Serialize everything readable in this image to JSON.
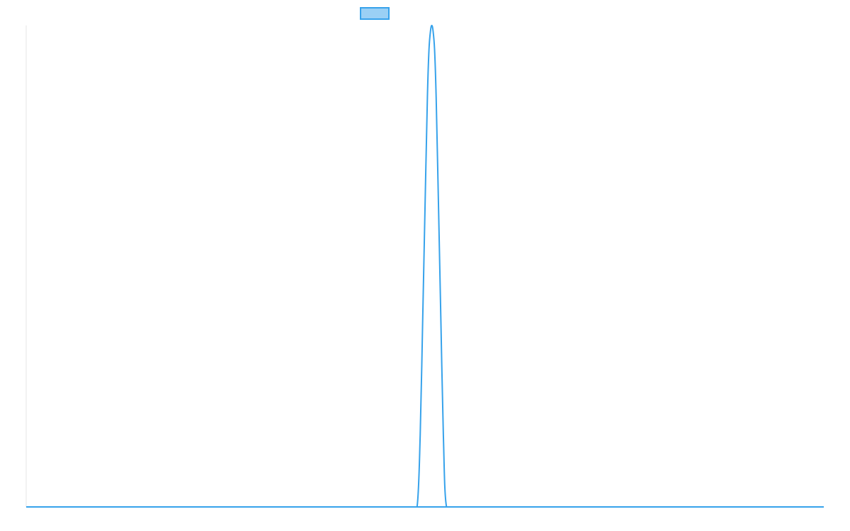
{
  "colors": {
    "line": "#36a2eb",
    "legend_fill": "#9ad0f5",
    "grid": "#e5e5e5"
  },
  "chart_data": {
    "type": "line",
    "title": "",
    "xlabel": "",
    "ylabel": "",
    "grid": false,
    "legend": "top-center",
    "xlim": [
      0,
      1000
    ],
    "ylim": [
      0,
      1
    ],
    "series": [
      {
        "name": "",
        "color": "#36a2eb",
        "points": [
          [
            0,
            0
          ],
          [
            480,
            0
          ],
          [
            490,
            0
          ],
          [
            494,
            0.15
          ],
          [
            497,
            0.38
          ],
          [
            500,
            0.62
          ],
          [
            503,
            0.85
          ],
          [
            505,
            0.95
          ],
          [
            507,
            0.99
          ],
          [
            508.5,
            1.0
          ],
          [
            510,
            0.99
          ],
          [
            512,
            0.95
          ],
          [
            514,
            0.85
          ],
          [
            517,
            0.62
          ],
          [
            520,
            0.38
          ],
          [
            523,
            0.15
          ],
          [
            527,
            0
          ],
          [
            540,
            0
          ],
          [
            1000,
            0
          ]
        ]
      }
    ]
  }
}
